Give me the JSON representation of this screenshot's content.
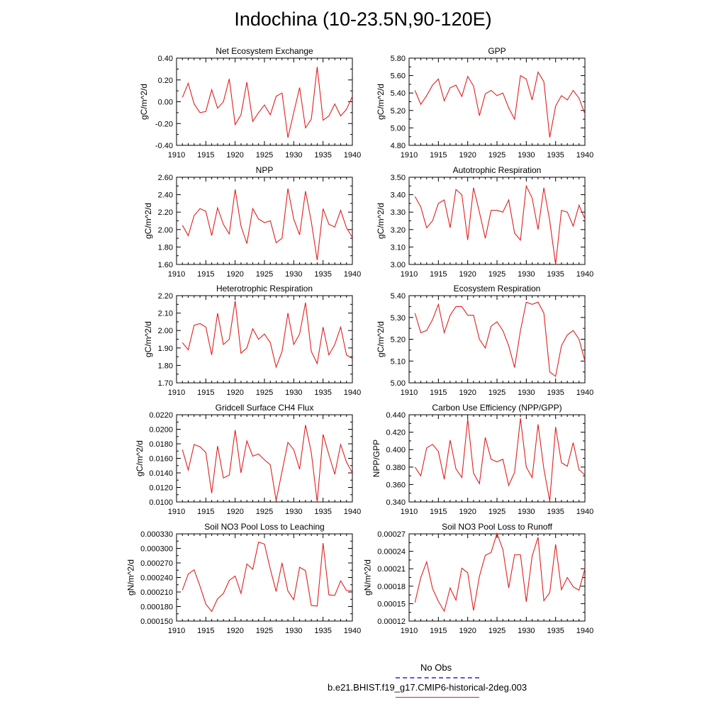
{
  "title": "Indochina (10-23.5N,90-120E)",
  "legend": {
    "obs_label": "No Obs",
    "model_label": "b.e21.BHIST.f19_g17.CMIP6-historical-2deg.003",
    "obs_color": "#5a5ae0",
    "model_color": "#e02020"
  },
  "chart_data": [
    {
      "type": "line",
      "title": "Net Ecosystem Exchange",
      "ylabel": "gC/m^2/d",
      "xlim": [
        1910,
        1940
      ],
      "x_ticks": [
        "1910",
        "1915",
        "1920",
        "1925",
        "1930",
        "1935",
        "1940"
      ],
      "ylim": [
        -0.4,
        0.4
      ],
      "y_ticks": [
        "-0.40",
        "-0.20",
        "0.00",
        "0.20",
        "0.40"
      ],
      "x": [
        1911,
        1912,
        1913,
        1914,
        1915,
        1916,
        1917,
        1918,
        1919,
        1920,
        1921,
        1922,
        1923,
        1924,
        1925,
        1926,
        1927,
        1928,
        1929,
        1930,
        1931,
        1932,
        1933,
        1934,
        1935,
        1936,
        1937,
        1938,
        1939,
        1940
      ],
      "values": [
        0.04,
        0.17,
        -0.02,
        -0.1,
        -0.09,
        0.11,
        -0.06,
        0.0,
        0.21,
        -0.21,
        -0.12,
        0.18,
        -0.18,
        -0.1,
        -0.03,
        -0.12,
        0.05,
        0.08,
        -0.33,
        -0.1,
        0.13,
        -0.24,
        -0.16,
        0.32,
        -0.17,
        -0.13,
        -0.02,
        -0.13,
        -0.07,
        0.05
      ],
      "color": "#e02020"
    },
    {
      "type": "line",
      "title": "GPP",
      "ylabel": "gC/m^2/d",
      "xlim": [
        1910,
        1940
      ],
      "x_ticks": [
        "1910",
        "1915",
        "1920",
        "1925",
        "1930",
        "1935",
        "1940"
      ],
      "ylim": [
        4.8,
        5.8
      ],
      "y_ticks": [
        "4.80",
        "5.00",
        "5.20",
        "5.40",
        "5.60",
        "5.80"
      ],
      "x": [
        1911,
        1912,
        1913,
        1914,
        1915,
        1916,
        1917,
        1918,
        1919,
        1920,
        1921,
        1922,
        1923,
        1924,
        1925,
        1926,
        1927,
        1928,
        1929,
        1930,
        1931,
        1932,
        1933,
        1934,
        1935,
        1936,
        1937,
        1938,
        1939,
        1940
      ],
      "values": [
        5.43,
        5.27,
        5.37,
        5.49,
        5.56,
        5.31,
        5.46,
        5.49,
        5.36,
        5.59,
        5.48,
        5.14,
        5.39,
        5.43,
        5.37,
        5.4,
        5.23,
        5.1,
        5.6,
        5.56,
        5.32,
        5.64,
        5.53,
        4.89,
        5.25,
        5.37,
        5.32,
        5.43,
        5.34,
        5.16
      ],
      "color": "#e02020"
    },
    {
      "type": "line",
      "title": "NPP",
      "ylabel": "gC/m^2/d",
      "xlim": [
        1910,
        1940
      ],
      "x_ticks": [
        "1910",
        "1915",
        "1920",
        "1925",
        "1930",
        "1935",
        "1940"
      ],
      "ylim": [
        1.6,
        2.6
      ],
      "y_ticks": [
        "1.60",
        "1.80",
        "2.00",
        "2.20",
        "2.40",
        "2.60"
      ],
      "x": [
        1911,
        1912,
        1913,
        1914,
        1915,
        1916,
        1917,
        1918,
        1919,
        1920,
        1921,
        1922,
        1923,
        1924,
        1925,
        1926,
        1927,
        1928,
        1929,
        1930,
        1931,
        1932,
        1933,
        1934,
        1935,
        1936,
        1937,
        1938,
        1939,
        1940
      ],
      "values": [
        2.05,
        1.93,
        2.16,
        2.24,
        2.21,
        1.93,
        2.25,
        2.06,
        1.95,
        2.46,
        2.04,
        1.84,
        2.24,
        2.12,
        2.08,
        2.1,
        1.85,
        1.9,
        2.47,
        2.12,
        1.94,
        2.44,
        2.09,
        1.65,
        2.24,
        2.06,
        2.03,
        2.22,
        2.02,
        1.91
      ],
      "color": "#e02020"
    },
    {
      "type": "line",
      "title": "Autotrophic Respiration",
      "ylabel": "gC/m^2/d",
      "xlim": [
        1910,
        1940
      ],
      "x_ticks": [
        "1910",
        "1915",
        "1920",
        "1925",
        "1930",
        "1935",
        "1940"
      ],
      "ylim": [
        3.0,
        3.5
      ],
      "y_ticks": [
        "3.00",
        "3.10",
        "3.20",
        "3.30",
        "3.40",
        "3.50"
      ],
      "x": [
        1911,
        1912,
        1913,
        1914,
        1915,
        1916,
        1917,
        1918,
        1919,
        1920,
        1921,
        1922,
        1923,
        1924,
        1925,
        1926,
        1927,
        1928,
        1929,
        1930,
        1931,
        1932,
        1933,
        1934,
        1935,
        1936,
        1937,
        1938,
        1939,
        1940
      ],
      "values": [
        3.39,
        3.33,
        3.21,
        3.25,
        3.35,
        3.37,
        3.21,
        3.43,
        3.4,
        3.14,
        3.44,
        3.3,
        3.15,
        3.31,
        3.31,
        3.3,
        3.37,
        3.18,
        3.14,
        3.45,
        3.38,
        3.2,
        3.44,
        3.25,
        3.0,
        3.31,
        3.3,
        3.22,
        3.34,
        3.26
      ],
      "color": "#e02020"
    },
    {
      "type": "line",
      "title": "Heterotrophic Respiration",
      "ylabel": "gC/m^2/d",
      "xlim": [
        1910,
        1940
      ],
      "x_ticks": [
        "1910",
        "1915",
        "1920",
        "1925",
        "1930",
        "1935",
        "1940"
      ],
      "ylim": [
        1.7,
        2.2
      ],
      "y_ticks": [
        "1.70",
        "1.80",
        "1.90",
        "2.00",
        "2.10",
        "2.20"
      ],
      "x": [
        1911,
        1912,
        1913,
        1914,
        1915,
        1916,
        1917,
        1918,
        1919,
        1920,
        1921,
        1922,
        1923,
        1924,
        1925,
        1926,
        1927,
        1928,
        1929,
        1930,
        1931,
        1932,
        1933,
        1934,
        1935,
        1936,
        1937,
        1938,
        1939,
        1940
      ],
      "values": [
        1.93,
        1.89,
        2.03,
        2.04,
        2.02,
        1.86,
        2.1,
        1.92,
        1.95,
        2.17,
        1.87,
        1.9,
        2.01,
        1.95,
        1.98,
        1.93,
        1.79,
        1.88,
        2.1,
        1.92,
        1.98,
        2.16,
        1.88,
        1.81,
        2.02,
        1.86,
        1.92,
        2.02,
        1.86,
        1.84
      ],
      "color": "#e02020"
    },
    {
      "type": "line",
      "title": "Ecosystem Respiration",
      "ylabel": "gC/m^2/d",
      "xlim": [
        1910,
        1940
      ],
      "x_ticks": [
        "1910",
        "1915",
        "1920",
        "1925",
        "1930",
        "1935",
        "1940"
      ],
      "ylim": [
        5.0,
        5.4
      ],
      "y_ticks": [
        "5.00",
        "5.10",
        "5.20",
        "5.30",
        "5.40"
      ],
      "x": [
        1911,
        1912,
        1913,
        1914,
        1915,
        1916,
        1917,
        1918,
        1919,
        1920,
        1921,
        1922,
        1923,
        1924,
        1925,
        1926,
        1927,
        1928,
        1929,
        1930,
        1931,
        1932,
        1933,
        1934,
        1935,
        1936,
        1937,
        1938,
        1939,
        1940
      ],
      "values": [
        5.32,
        5.23,
        5.24,
        5.29,
        5.36,
        5.23,
        5.31,
        5.35,
        5.35,
        5.31,
        5.31,
        5.2,
        5.16,
        5.26,
        5.28,
        5.24,
        5.17,
        5.07,
        5.24,
        5.37,
        5.36,
        5.37,
        5.32,
        5.05,
        5.03,
        5.17,
        5.22,
        5.24,
        5.2,
        5.1
      ],
      "color": "#e02020"
    },
    {
      "type": "line",
      "title": "Gridcell Surface CH4 Flux",
      "ylabel": "gC/m^2/d",
      "xlim": [
        1910,
        1940
      ],
      "x_ticks": [
        "1910",
        "1915",
        "1920",
        "1925",
        "1930",
        "1935",
        "1940"
      ],
      "ylim": [
        0.01,
        0.022
      ],
      "y_ticks": [
        "0.0100",
        "0.0120",
        "0.0140",
        "0.0160",
        "0.0180",
        "0.0200",
        "0.0220"
      ],
      "x": [
        1911,
        1912,
        1913,
        1914,
        1915,
        1916,
        1917,
        1918,
        1919,
        1920,
        1921,
        1922,
        1923,
        1924,
        1925,
        1926,
        1927,
        1928,
        1929,
        1930,
        1931,
        1932,
        1933,
        1934,
        1935,
        1936,
        1937,
        1938,
        1939,
        1940
      ],
      "values": [
        0.0172,
        0.0144,
        0.0179,
        0.0176,
        0.0168,
        0.0112,
        0.0177,
        0.0133,
        0.0137,
        0.0199,
        0.014,
        0.0184,
        0.0163,
        0.0166,
        0.0158,
        0.0151,
        0.0102,
        0.0142,
        0.0182,
        0.0172,
        0.0145,
        0.0206,
        0.0168,
        0.01,
        0.0193,
        0.0165,
        0.0138,
        0.0179,
        0.0155,
        0.014
      ],
      "color": "#e02020"
    },
    {
      "type": "line",
      "title": "Carbon Use Efficiency (NPP/GPP)",
      "ylabel": "NPP/GPP",
      "xlim": [
        1910,
        1940
      ],
      "x_ticks": [
        "1910",
        "1915",
        "1920",
        "1925",
        "1930",
        "1935",
        "1940"
      ],
      "ylim": [
        0.34,
        0.44
      ],
      "y_ticks": [
        "0.340",
        "0.360",
        "0.380",
        "0.400",
        "0.420",
        "0.440"
      ],
      "x": [
        1911,
        1912,
        1913,
        1914,
        1915,
        1916,
        1917,
        1918,
        1919,
        1920,
        1921,
        1922,
        1923,
        1924,
        1925,
        1926,
        1927,
        1928,
        1929,
        1930,
        1931,
        1932,
        1933,
        1934,
        1935,
        1936,
        1937,
        1938,
        1939,
        1940
      ],
      "values": [
        0.38,
        0.37,
        0.402,
        0.406,
        0.398,
        0.366,
        0.411,
        0.378,
        0.368,
        0.435,
        0.373,
        0.361,
        0.414,
        0.389,
        0.386,
        0.389,
        0.359,
        0.374,
        0.436,
        0.38,
        0.368,
        0.429,
        0.378,
        0.341,
        0.426,
        0.385,
        0.381,
        0.408,
        0.377,
        0.371
      ],
      "color": "#e02020"
    },
    {
      "type": "line",
      "title": "Soil NO3 Pool Loss to Leaching",
      "ylabel": "gN/m^2/d",
      "xlim": [
        1910,
        1940
      ],
      "x_ticks": [
        "1910",
        "1915",
        "1920",
        "1925",
        "1930",
        "1935",
        "1940"
      ],
      "ylim": [
        0.00015,
        0.00033
      ],
      "y_ticks": [
        "0.000150",
        "0.000180",
        "0.000210",
        "0.000240",
        "0.000270",
        "0.000300",
        "0.000330"
      ],
      "x": [
        1911,
        1912,
        1913,
        1914,
        1915,
        1916,
        1917,
        1918,
        1919,
        1920,
        1921,
        1922,
        1923,
        1924,
        1925,
        1926,
        1927,
        1928,
        1929,
        1930,
        1931,
        1932,
        1933,
        1934,
        1935,
        1936,
        1937,
        1938,
        1939,
        1940
      ],
      "values": [
        0.000214,
        0.000247,
        0.000256,
        0.000222,
        0.000185,
        0.00017,
        0.000196,
        0.000207,
        0.000234,
        0.000243,
        0.000207,
        0.000268,
        0.000257,
        0.000313,
        0.000309,
        0.000257,
        0.000211,
        0.00027,
        0.000212,
        0.000194,
        0.000261,
        0.000254,
        0.000182,
        0.000181,
        0.000311,
        0.000204,
        0.000203,
        0.000233,
        0.000213,
        0.000213
      ],
      "color": "#e02020"
    },
    {
      "type": "line",
      "title": "Soil NO3 Pool Loss to Runoff",
      "ylabel": "gN/m^2/d",
      "xlim": [
        1910,
        1940
      ],
      "x_ticks": [
        "1910",
        "1915",
        "1920",
        "1925",
        "1930",
        "1935",
        "1940"
      ],
      "ylim": [
        0.00012,
        0.00027
      ],
      "y_ticks": [
        "0.00012",
        "0.00015",
        "0.00018",
        "0.00021",
        "0.00024",
        "0.00027"
      ],
      "x": [
        1911,
        1912,
        1913,
        1914,
        1915,
        1916,
        1917,
        1918,
        1919,
        1920,
        1921,
        1922,
        1923,
        1924,
        1925,
        1926,
        1927,
        1928,
        1929,
        1930,
        1931,
        1932,
        1933,
        1934,
        1935,
        1936,
        1937,
        1938,
        1939,
        1940
      ],
      "values": [
        0.000152,
        0.000195,
        0.000222,
        0.000176,
        0.000154,
        0.000137,
        0.000177,
        0.000156,
        0.000211,
        0.000203,
        0.000138,
        0.000197,
        0.000233,
        0.000238,
        0.000271,
        0.000243,
        0.000177,
        0.000234,
        0.000234,
        0.000153,
        0.000232,
        0.000264,
        0.000155,
        0.000169,
        0.000252,
        0.000174,
        0.000195,
        0.000179,
        0.000173,
        0.00021
      ],
      "color": "#e02020"
    }
  ]
}
